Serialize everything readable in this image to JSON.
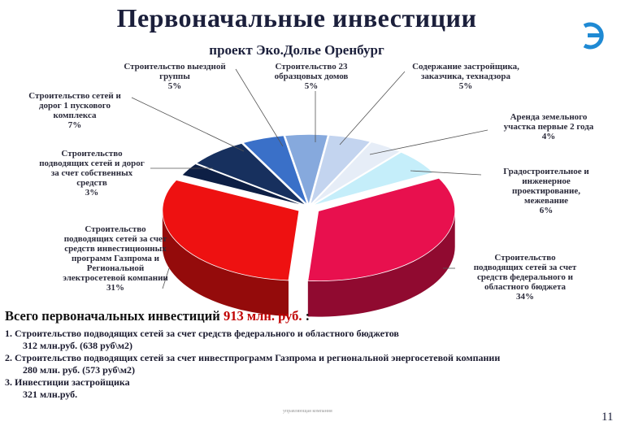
{
  "header": {
    "title": "Первоначальные инвестиции",
    "subtitle": "проект Эко.Долье Оренбург"
  },
  "logo": {
    "icon": "company-logo-icon",
    "color": "#1f8ad4"
  },
  "chart_data": {
    "type": "pie",
    "three_d": true,
    "exploded": true,
    "slices": [
      {
        "lines": [
          "Строительство",
          "подводящих сетей за счет",
          "средств федерального и",
          "областного бюджета",
          "34%"
        ],
        "value": 34,
        "color": "#e8104e"
      },
      {
        "lines": [
          "Строительство",
          "подводящих сетей за счет",
          "средств инвестиционных",
          "программ Газпрома и",
          "Региональной",
          "электросетевой компании",
          "31%"
        ],
        "value": 31,
        "color": "#ee1111"
      },
      {
        "lines": [
          "Строительство",
          "подводящих сетей и дорог",
          "за счет собственных",
          "средств",
          "3%"
        ],
        "value": 3,
        "color": "#0d1f45"
      },
      {
        "lines": [
          "Строительство сетей и",
          "дорог 1 пускового",
          "комплекса",
          "7%"
        ],
        "value": 7,
        "color": "#17305e"
      },
      {
        "lines": [
          "Строительство выездной",
          "группы",
          "5%"
        ],
        "value": 5,
        "color": "#3a70c8"
      },
      {
        "lines": [
          "Строительство 23",
          "образцовых домов",
          "5%"
        ],
        "value": 5,
        "color": "#86a9dd"
      },
      {
        "lines": [
          "Содержание застройщика,",
          "заказчика, технадзора",
          "5%"
        ],
        "value": 5,
        "color": "#c3d4ef"
      },
      {
        "lines": [
          "Аренда земельного",
          "участка первые 2 года",
          "4%"
        ],
        "value": 4,
        "color": "#e6edf7"
      },
      {
        "lines": [
          "Градостроительное и",
          "инженерное",
          "проектирование,",
          "межевание",
          "6%"
        ],
        "value": 6,
        "color": "#c5eefa"
      }
    ]
  },
  "summary": {
    "prefix": "Всего первоначальных инвестиций",
    "amount": "913 млн. руб.",
    "suffix": ":",
    "items": [
      {
        "text": "1. Строительство подводящих сетей за счет средств федерального и областного бюджетов",
        "detail": "312 млн.руб. (638 руб\\м2)"
      },
      {
        "text": "2. Строительство подводящих сетей за счет инвестпрограмм Газпрома и региональной энергосетевой компании",
        "detail": "280 млн. руб. (573 руб\\м2)"
      },
      {
        "text": "3. Инвестиции застройщика",
        "detail": "321 млн.руб."
      }
    ]
  },
  "footer": {
    "small_text": "управляющая компания",
    "page_number": "11"
  }
}
